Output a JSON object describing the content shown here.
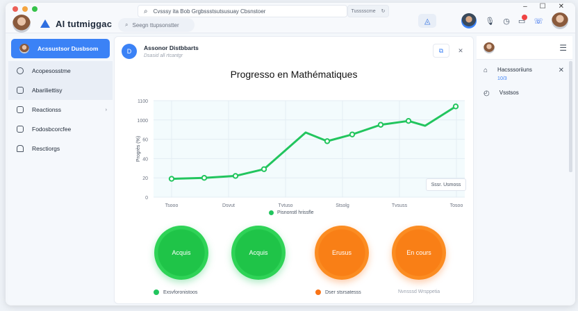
{
  "window": {
    "traffic_colors": [
      "#ec5f57",
      "#f5a540",
      "#36c24a"
    ],
    "controls": [
      "–",
      "☐",
      "✕"
    ]
  },
  "header": {
    "brand_name": "AI tutmiggac",
    "subsearch_label": "Seegn ttupsonstter",
    "search_placeholder": "Cvsssy ita Bob Grgbssstsutsusuay Cbsnstoer",
    "search_side_label": "Tusssscme",
    "notification_count": "43",
    "icons": [
      "share-icon",
      "user-avatar",
      "voice-icon",
      "clock-icon",
      "notification-icon",
      "phone-icon",
      "profile-avatar"
    ]
  },
  "sidebar": {
    "items": [
      {
        "label": "Acssustsor Dusbsom",
        "icon": "avatar",
        "active": true
      },
      {
        "label": "Acopesosstme",
        "icon": "circle-icon",
        "highlight": true
      },
      {
        "label": "Abariliettisy",
        "icon": "card-icon",
        "highlight": true
      },
      {
        "label": "Reactionss",
        "icon": "image-icon",
        "chevron": true
      },
      {
        "label": "Fodosbcorcfee",
        "icon": "calendar-icon"
      },
      {
        "label": "Resctiorgs",
        "icon": "home-icon"
      }
    ]
  },
  "main": {
    "card_title": "Assonor Distbbarts",
    "card_subtitle": "Dsasid all rtcantgr",
    "chart_title": "Progresso en Mathématiques",
    "legend_label": "Pisnonstl hrissfle",
    "tooltip": "Sssr. Usmoss",
    "circles": [
      {
        "label": "Acquis",
        "color": "green"
      },
      {
        "label": "Acquis",
        "color": "green"
      },
      {
        "label": "Erusus",
        "color": "orange"
      },
      {
        "label": "En cours",
        "color": "orange"
      }
    ],
    "bottom_legend": [
      {
        "label": "Exsvforonistoos",
        "color": "#22c55e"
      },
      {
        "label": "Dser stsrsatesss",
        "color": "#f97316"
      },
      {
        "label": "Nvnsssd Wrsppetia",
        "color": null
      }
    ]
  },
  "right_panel": {
    "items": [
      {
        "label": "Hacsssoriiuns",
        "sub": "10/3",
        "icon": "chat-icon",
        "closable": true
      },
      {
        "label": "Vsstsos",
        "icon": "gauge-icon"
      }
    ]
  },
  "chart_data": {
    "type": "line",
    "title": "Progresso en Mathématiques",
    "xlabel": "",
    "ylabel": "Progrès (%)",
    "x": [
      1,
      2,
      3,
      4,
      5,
      6,
      7,
      8,
      9,
      10,
      11
    ],
    "x_tick_labels": [
      "Tsooo",
      "Dsvut",
      "Tvtuso",
      "Stsolg",
      "Tvsuss",
      "Tosoo"
    ],
    "y_tick_labels": [
      "0",
      "20",
      "40",
      "60",
      "1000",
      "1100"
    ],
    "ylim": [
      0,
      100
    ],
    "series": [
      {
        "name": "Pisnonstl hrissfle",
        "color": "#22c55e",
        "values": [
          19,
          20,
          22,
          29,
          67,
          58,
          65,
          75,
          79,
          74,
          94
        ]
      }
    ],
    "grid": true,
    "legend_position": "bottom"
  }
}
